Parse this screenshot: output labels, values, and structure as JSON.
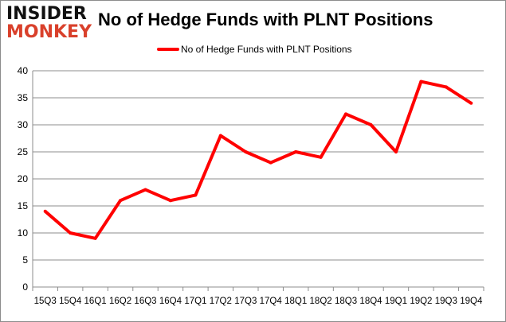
{
  "logo": {
    "line1": "INSIDER",
    "line2": "MONKEY"
  },
  "colors": {
    "series": "#ff0000",
    "grid": "#8c8c8c"
  },
  "chart_data": {
    "type": "line",
    "title": "No of Hedge Funds with PLNT Positions",
    "categories": [
      "15Q3",
      "15Q4",
      "16Q1",
      "16Q2",
      "16Q3",
      "16Q4",
      "17Q1",
      "17Q2",
      "17Q3",
      "17Q4",
      "18Q1",
      "18Q2",
      "18Q3",
      "18Q4",
      "19Q1",
      "19Q2",
      "19Q3",
      "19Q4"
    ],
    "series": [
      {
        "name": "No of Hedge Funds with PLNT Positions",
        "values": [
          14,
          10,
          9,
          16,
          18,
          16,
          17,
          28,
          25,
          23,
          25,
          24,
          32,
          30,
          25,
          38,
          37,
          34
        ]
      }
    ],
    "yticks": [
      0,
      5,
      10,
      15,
      20,
      25,
      30,
      35,
      40
    ],
    "ylim": [
      0,
      40
    ],
    "grid": true,
    "legend": "top-center",
    "xlabel": "",
    "ylabel": ""
  }
}
